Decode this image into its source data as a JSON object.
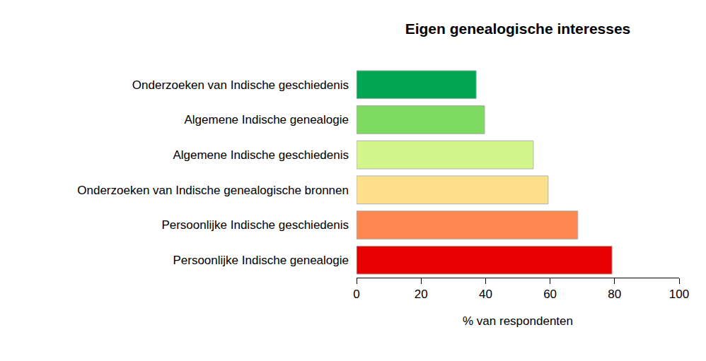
{
  "chart_data": {
    "type": "bar",
    "orientation": "horizontal",
    "title": "Eigen genealogische interesses",
    "x_label": "% van respondenten",
    "categories": [
      "Onderzoeken van Indische geschiedenis",
      "Algemene Indische genealogie",
      "Algemene Indische geschiedenis",
      "Onderzoeken van Indische genealogische bronnen",
      "Persoonlijke Indische geschiedenis",
      "Persoonlijke Indische genealogie"
    ],
    "values": [
      37.1,
      39.7,
      54.8,
      59.4,
      68.6,
      79.2
    ],
    "colors": [
      "#00a651",
      "#7ed95f",
      "#d3f58a",
      "#ffe08a",
      "#ff8750",
      "#e60000"
    ],
    "xlim": [
      0,
      100
    ],
    "xticks": [
      0,
      20,
      40,
      60,
      80,
      100
    ],
    "grid": false
  }
}
